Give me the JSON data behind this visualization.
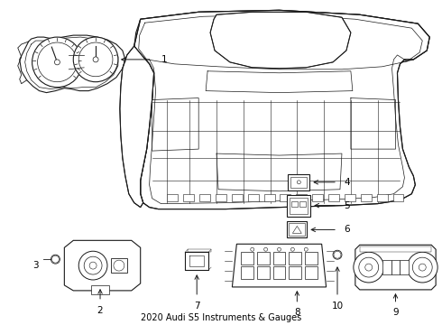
{
  "title": "2020 Audi S5 Instruments & Gauges",
  "background_color": "#ffffff",
  "line_color": "#1a1a1a",
  "text_color": "#000000",
  "fig_width": 4.9,
  "fig_height": 3.6,
  "dpi": 100
}
